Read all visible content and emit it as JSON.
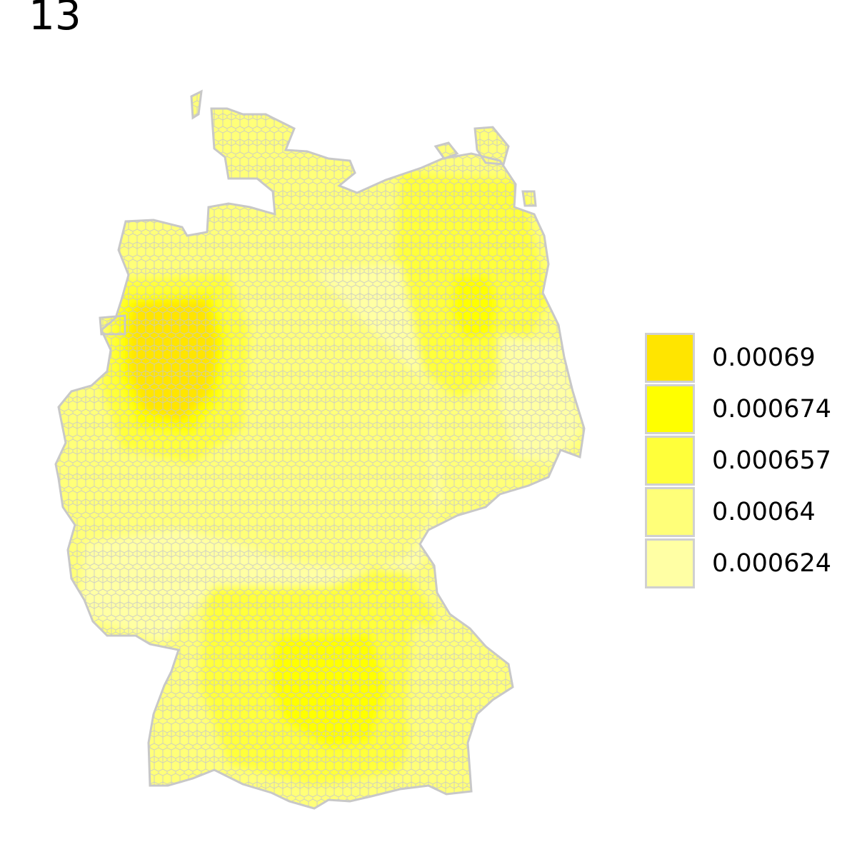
{
  "title": "13",
  "map": {
    "region": "Germany",
    "cell_shape": "hexagon",
    "cell_outline_color": "#c8c8c8",
    "hotspots": [
      {
        "area": "north-west (Ruhr / Münsterland)",
        "level": "0.00069"
      },
      {
        "area": "south (Bavaria, around Munich)",
        "level": "0.000674"
      },
      {
        "area": "north-east (Brandenburg)",
        "level": "0.000674"
      }
    ]
  },
  "legend": {
    "placement": "right",
    "items": [
      {
        "label": "0.00069",
        "color": "#ffe500"
      },
      {
        "label": "0.000674",
        "color": "#ffff00"
      },
      {
        "label": "0.000657",
        "color": "#ffff3a"
      },
      {
        "label": "0.00064",
        "color": "#ffff79"
      },
      {
        "label": "0.000624",
        "color": "#ffffa4"
      }
    ]
  }
}
